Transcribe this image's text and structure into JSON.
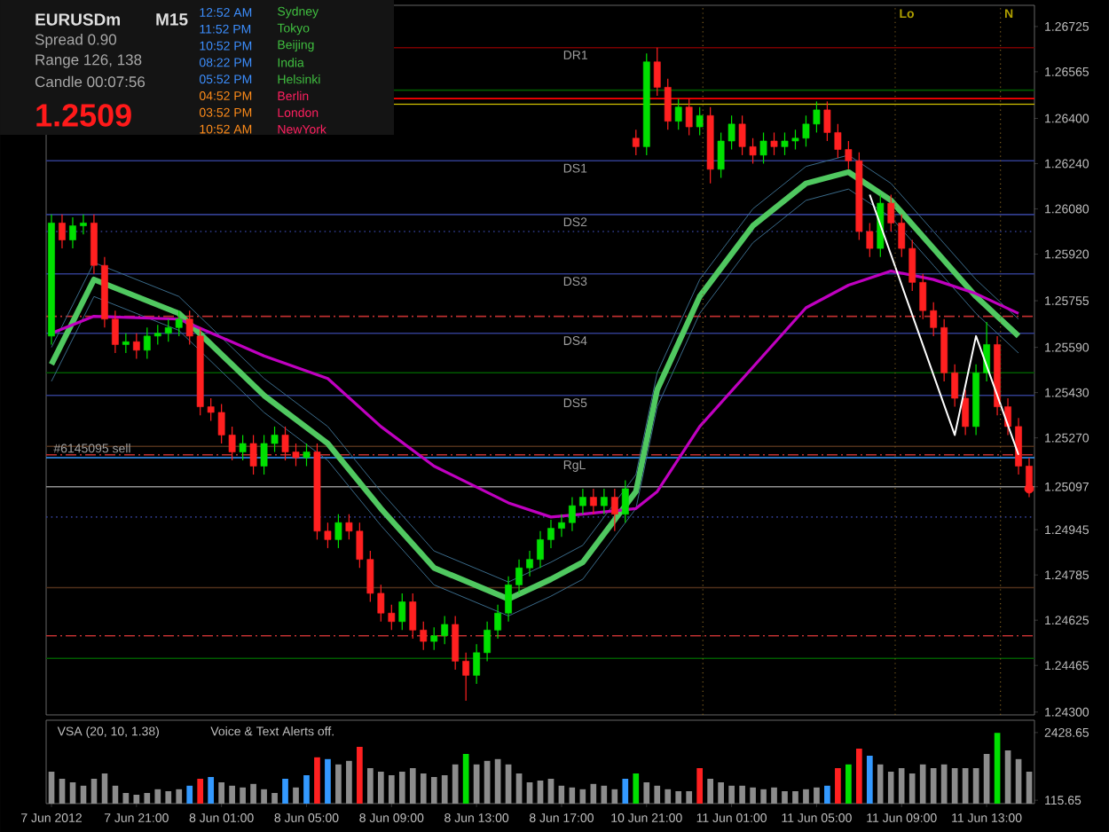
{
  "chart_data": [
    {
      "type": "candlestick",
      "title": "EURUSDm",
      "subtitle": "M15",
      "tick_labels": "y",
      "annotations": [
        "Spread  0.90",
        "Range  126, 138",
        "Candle  00:07:56",
        "1.2509",
        "12:52 AM",
        "11:52 PM",
        "10:52 PM",
        "08:22 PM",
        "05:52 PM",
        "04:52 PM",
        "03:52 PM",
        "10:52 AM",
        "Sydney",
        "Tokyo",
        "Beijing",
        "India",
        "Helsinki",
        "Berlin",
        "London",
        "NewYork",
        "Lo",
        "N"
      ],
      "categories": [
        null,
        null,
        null,
        null,
        null,
        null,
        null,
        null,
        null,
        null,
        null,
        null,
        null,
        null,
        null,
        null,
        null,
        null,
        null,
        null,
        null,
        null,
        null,
        null,
        null,
        null,
        null,
        null,
        null,
        null,
        null,
        null,
        null,
        null,
        null,
        null,
        null,
        null,
        null,
        null,
        null,
        null,
        null,
        null,
        null,
        null,
        null,
        null,
        null,
        null,
        null,
        null,
        null,
        null,
        null,
        null,
        null,
        null,
        null,
        null,
        null,
        null,
        null,
        null,
        null,
        null,
        null,
        null,
        null,
        null,
        null,
        null,
        null,
        null,
        null,
        null,
        null,
        null,
        null,
        null,
        null,
        null,
        null,
        null,
        null,
        null,
        null,
        null,
        null,
        null,
        null,
        null,
        null
      ],
      "ohlc": [
        [
          1.2563,
          1.2606,
          1.256,
          1.2603
        ],
        [
          1.2603,
          1.2606,
          1.2594,
          1.2597
        ],
        [
          1.2597,
          1.2605,
          1.2594,
          1.2602
        ],
        [
          1.2602,
          1.2606,
          1.2599,
          1.2603
        ],
        [
          1.2603,
          1.2606,
          1.2585,
          1.2588
        ],
        [
          1.2588,
          1.2591,
          1.2566,
          1.2569
        ],
        [
          1.2569,
          1.2572,
          1.2557,
          1.256
        ],
        [
          1.256,
          1.2564,
          1.2557,
          1.2561
        ],
        [
          1.2561,
          1.2564,
          1.2555,
          1.2558
        ],
        [
          1.2558,
          1.2566,
          1.2555,
          1.2563
        ],
        [
          1.2563,
          1.2567,
          1.256,
          1.2564
        ],
        [
          1.2564,
          1.2569,
          1.2561,
          1.2566
        ],
        [
          1.2566,
          1.2572,
          1.2563,
          1.2569
        ],
        [
          1.2569,
          1.2572,
          1.256,
          1.2563
        ],
        [
          1.2563,
          1.2566,
          1.2535,
          1.2538
        ],
        [
          1.2538,
          1.2541,
          1.2533,
          1.2536
        ],
        [
          1.2536,
          1.2539,
          1.2525,
          1.2528
        ],
        [
          1.2528,
          1.2531,
          1.2519,
          1.2522
        ],
        [
          1.2522,
          1.2528,
          1.2519,
          1.2525
        ],
        [
          1.2525,
          1.2528,
          1.2514,
          1.2517
        ],
        [
          1.2517,
          1.2528,
          1.2514,
          1.2525
        ],
        [
          1.2525,
          1.2531,
          1.2522,
          1.2528
        ],
        [
          1.2528,
          1.2531,
          1.2519,
          1.2522
        ],
        [
          1.2522,
          1.2525,
          1.2517,
          1.252
        ],
        [
          1.252,
          1.2525,
          1.2517,
          1.2522
        ],
        [
          1.2522,
          1.2525,
          1.2491,
          1.2494
        ],
        [
          1.2494,
          1.2497,
          1.2488,
          1.2491
        ],
        [
          1.2491,
          1.25,
          1.2488,
          1.2497
        ],
        [
          1.2497,
          1.25,
          1.2491,
          1.2494
        ],
        [
          1.2494,
          1.2497,
          1.2481,
          1.2484
        ],
        [
          1.2484,
          1.2487,
          1.2469,
          1.2472
        ],
        [
          1.2472,
          1.2475,
          1.2462,
          1.2465
        ],
        [
          1.2465,
          1.2468,
          1.2459,
          1.2462
        ],
        [
          1.2462,
          1.2472,
          1.2459,
          1.2469
        ],
        [
          1.2469,
          1.2472,
          1.2456,
          1.2459
        ],
        [
          1.2459,
          1.2462,
          1.2452,
          1.2455
        ],
        [
          1.2455,
          1.246,
          1.2452,
          1.2457
        ],
        [
          1.2457,
          1.2464,
          1.2454,
          1.2461
        ],
        [
          1.2461,
          1.2464,
          1.2445,
          1.2448
        ],
        [
          1.2448,
          1.2451,
          1.2434,
          1.2443
        ],
        [
          1.2443,
          1.2454,
          1.244,
          1.2451
        ],
        [
          1.2451,
          1.2462,
          1.2448,
          1.2459
        ],
        [
          1.2459,
          1.2468,
          1.2456,
          1.2465
        ],
        [
          1.2465,
          1.2478,
          1.2462,
          1.2475
        ],
        [
          1.2475,
          1.2484,
          1.2472,
          1.2481
        ],
        [
          1.2481,
          1.2487,
          1.2478,
          1.2484
        ],
        [
          1.2484,
          1.2494,
          1.2481,
          1.2491
        ],
        [
          1.2491,
          1.2498,
          1.2488,
          1.2495
        ],
        [
          1.2495,
          1.25,
          1.2492,
          1.2497
        ],
        [
          1.2497,
          1.2506,
          1.2494,
          1.2503
        ],
        [
          1.2503,
          1.2509,
          1.25,
          1.2506
        ],
        [
          1.2506,
          1.2509,
          1.25,
          1.2503
        ],
        [
          1.2503,
          1.2509,
          1.25,
          1.2506
        ],
        [
          1.2506,
          1.2509,
          1.2494,
          1.25
        ],
        [
          1.25,
          1.2512,
          1.2497,
          1.2509
        ],
        [
          1.2633,
          1.2636,
          1.2627,
          1.263
        ],
        [
          1.263,
          1.2663,
          1.2627,
          1.266
        ],
        [
          1.266,
          1.2665,
          1.2648,
          1.2651
        ],
        [
          1.2651,
          1.2654,
          1.2636,
          1.2639
        ],
        [
          1.2639,
          1.2647,
          1.2636,
          1.2644
        ],
        [
          1.2644,
          1.2647,
          1.2634,
          1.2637
        ],
        [
          1.2637,
          1.2644,
          1.2634,
          1.2641
        ],
        [
          1.2641,
          1.2644,
          1.2617,
          1.2622
        ],
        [
          1.2622,
          1.2635,
          1.2619,
          1.2632
        ],
        [
          1.2632,
          1.2641,
          1.2629,
          1.2638
        ],
        [
          1.2638,
          1.2641,
          1.2627,
          1.263
        ],
        [
          1.263,
          1.2633,
          1.2624,
          1.2627
        ],
        [
          1.2627,
          1.2635,
          1.2624,
          1.2632
        ],
        [
          1.2632,
          1.2635,
          1.2627,
          1.263
        ],
        [
          1.263,
          1.2635,
          1.2627,
          1.2632
        ],
        [
          1.2632,
          1.2636,
          1.2629,
          1.2633
        ],
        [
          1.2633,
          1.2641,
          1.263,
          1.2638
        ],
        [
          1.2638,
          1.2646,
          1.2635,
          1.2643
        ],
        [
          1.2643,
          1.2646,
          1.2632,
          1.2635
        ],
        [
          1.2635,
          1.2638,
          1.2626,
          1.2629
        ],
        [
          1.2629,
          1.2632,
          1.2622,
          1.2625
        ],
        [
          1.2625,
          1.2628,
          1.2597,
          1.26
        ],
        [
          1.26,
          1.2603,
          1.2591,
          1.2594
        ],
        [
          1.2594,
          1.2613,
          1.2591,
          1.261
        ],
        [
          1.261,
          1.2613,
          1.26,
          1.2603
        ],
        [
          1.2603,
          1.2606,
          1.2591,
          1.2594
        ],
        [
          1.2594,
          1.2597,
          1.2579,
          1.2582
        ],
        [
          1.2582,
          1.2585,
          1.2569,
          1.2572
        ],
        [
          1.2572,
          1.2575,
          1.2563,
          1.2566
        ],
        [
          1.2566,
          1.2569,
          1.2547,
          1.255
        ],
        [
          1.255,
          1.2553,
          1.2538,
          1.2541
        ],
        [
          1.2541,
          1.2544,
          1.2528,
          1.2531
        ],
        [
          1.2531,
          1.2553,
          1.2528,
          1.255
        ],
        [
          1.255,
          1.2568,
          1.2547,
          1.256
        ],
        [
          1.256,
          1.2563,
          1.2535,
          1.2538
        ],
        [
          1.2538,
          1.2541,
          1.2528,
          1.2531
        ],
        [
          1.2531,
          1.2534,
          1.2514,
          1.2517
        ],
        [
          1.2517,
          1.252,
          1.2506,
          1.2509
        ]
      ],
      "series": [
        {
          "type": "line",
          "color": "#50c860",
          "values": [
            1.2553,
            null,
            null,
            null,
            1.2583,
            null,
            null,
            null,
            null,
            null,
            null,
            null,
            1.2571,
            null,
            null,
            null,
            null,
            null,
            null,
            null,
            1.2542,
            null,
            null,
            null,
            null,
            null,
            1.2525,
            null,
            null,
            null,
            null,
            1.2502,
            null,
            null,
            null,
            null,
            1.2481,
            null,
            null,
            null,
            null,
            null,
            null,
            1.247,
            null,
            null,
            null,
            1.2477,
            null,
            null,
            1.2483,
            null,
            null,
            null,
            null,
            1.2508,
            null,
            1.2544,
            null,
            null,
            null,
            1.2577,
            null,
            null,
            null,
            null,
            1.2602,
            null,
            null,
            null,
            null,
            1.2617,
            null,
            null,
            null,
            1.2621,
            null,
            null,
            null,
            1.2611,
            null,
            null,
            null,
            1.2594,
            null,
            null,
            null,
            1.2577,
            null,
            null,
            null,
            1.2563,
            null
          ]
        },
        {
          "type": "line",
          "color": "#3a6a8a",
          "values": [
            1.2559,
            null,
            null,
            null,
            1.2589,
            null,
            null,
            null,
            null,
            null,
            null,
            null,
            1.2577,
            null,
            null,
            null,
            null,
            null,
            null,
            null,
            1.2548,
            null,
            null,
            null,
            null,
            null,
            1.2531,
            null,
            null,
            null,
            null,
            1.2508,
            null,
            null,
            null,
            null,
            1.2487,
            null,
            null,
            null,
            null,
            null,
            null,
            1.2476,
            null,
            null,
            null,
            1.2483,
            null,
            null,
            1.2489,
            null,
            null,
            null,
            null,
            1.2514,
            null,
            1.255,
            null,
            null,
            null,
            1.2583,
            null,
            null,
            null,
            null,
            1.2608,
            null,
            null,
            null,
            null,
            1.2623,
            null,
            null,
            null,
            1.2627,
            null,
            null,
            null,
            1.2617,
            null,
            null,
            null,
            1.26,
            null,
            null,
            null,
            1.2583,
            null,
            null,
            null,
            1.2569,
            null
          ]
        },
        {
          "type": "line",
          "color": "#3a6a8a",
          "values": [
            1.2547,
            null,
            null,
            null,
            1.2577,
            null,
            null,
            null,
            null,
            null,
            null,
            null,
            1.2565,
            null,
            null,
            null,
            null,
            null,
            null,
            null,
            1.2536,
            null,
            null,
            null,
            null,
            null,
            1.2519,
            null,
            null,
            null,
            null,
            1.2496,
            null,
            null,
            null,
            null,
            1.2475,
            null,
            null,
            null,
            null,
            null,
            null,
            1.2464,
            null,
            null,
            null,
            1.2471,
            null,
            null,
            1.2477,
            null,
            null,
            null,
            null,
            1.2502,
            null,
            1.2538,
            null,
            null,
            null,
            1.2571,
            null,
            null,
            null,
            null,
            1.2596,
            null,
            null,
            null,
            null,
            1.2611,
            null,
            null,
            null,
            1.2615,
            null,
            null,
            null,
            1.2605,
            null,
            null,
            null,
            1.2588,
            null,
            null,
            null,
            1.2571,
            null,
            null,
            null,
            1.2557,
            null
          ]
        },
        {
          "type": "line",
          "color": "#c000c0",
          "values": [
            1.2564,
            null,
            null,
            null,
            1.257,
            null,
            null,
            null,
            null,
            null,
            null,
            null,
            1.2569,
            null,
            null,
            null,
            null,
            null,
            null,
            null,
            1.2556,
            null,
            null,
            null,
            null,
            null,
            1.2548,
            null,
            null,
            null,
            null,
            1.2531,
            null,
            null,
            null,
            null,
            1.2517,
            null,
            null,
            null,
            null,
            null,
            null,
            1.2504,
            null,
            null,
            null,
            1.2499,
            null,
            null,
            1.25,
            null,
            null,
            null,
            null,
            1.2502,
            null,
            1.2508,
            null,
            null,
            null,
            1.2531,
            null,
            null,
            null,
            null,
            1.2552,
            null,
            null,
            null,
            null,
            1.2573,
            null,
            null,
            null,
            1.2581,
            null,
            null,
            null,
            1.2586,
            null,
            null,
            null,
            1.2583,
            null,
            null,
            null,
            1.2578,
            null,
            null,
            null,
            1.2571,
            null
          ]
        },
        {
          "type": "line",
          "color": "#ffffff",
          "values": [
            null,
            null,
            null,
            null,
            null,
            null,
            null,
            null,
            null,
            null,
            null,
            null,
            null,
            null,
            null,
            null,
            null,
            null,
            null,
            null,
            null,
            null,
            null,
            null,
            null,
            null,
            null,
            null,
            null,
            null,
            null,
            null,
            null,
            null,
            null,
            null,
            null,
            null,
            null,
            null,
            null,
            null,
            null,
            null,
            null,
            null,
            null,
            null,
            null,
            null,
            null,
            null,
            null,
            null,
            null,
            null,
            null,
            null,
            null,
            null,
            null,
            null,
            null,
            null,
            null,
            null,
            null,
            null,
            null,
            null,
            null,
            null,
            null,
            null,
            null,
            null,
            null,
            1.2613,
            null,
            null,
            null,
            null,
            null,
            null,
            null,
            1.2528,
            null,
            1.2563,
            null,
            null,
            null,
            1.2521,
            null
          ]
        },
        {
          "type": "scatter",
          "color": "#ff2020",
          "values": [
            null,
            null,
            null,
            null,
            null,
            null,
            null,
            null,
            null,
            null,
            null,
            null,
            null,
            null,
            null,
            null,
            null,
            null,
            null,
            null,
            null,
            null,
            null,
            null,
            null,
            null,
            null,
            null,
            null,
            null,
            null,
            null,
            null,
            null,
            null,
            null,
            null,
            null,
            null,
            null,
            null,
            null,
            null,
            null,
            null,
            null,
            null,
            null,
            null,
            null,
            null,
            null,
            null,
            null,
            null,
            null,
            null,
            null,
            null,
            null,
            null,
            null,
            null,
            null,
            null,
            null,
            null,
            null,
            null,
            null,
            null,
            null,
            null,
            null,
            null,
            null,
            null,
            null,
            null,
            null,
            null,
            null,
            null,
            null,
            null,
            null,
            null,
            null,
            null,
            null,
            null,
            null,
            1.2509
          ]
        }
      ],
      "ref_lines": [
        {
          "axis": "y",
          "value": 1.2665,
          "label": "DR1",
          "color": "#7a0000"
        },
        {
          "axis": "y",
          "value": 1.265,
          "color": "#005a00"
        },
        {
          "axis": "y",
          "value": 1.2647,
          "color": "#ff0000"
        },
        {
          "axis": "y",
          "value": 1.2645,
          "color": "#d0c000"
        },
        {
          "axis": "y",
          "value": 1.2625,
          "label": "DS1",
          "color": "#303c8c"
        },
        {
          "axis": "y",
          "value": 1.2606,
          "label": "DS2",
          "color": "#303c8c"
        },
        {
          "axis": "y",
          "value": 1.26,
          "color": "#303c8c",
          "line_style": "dotted"
        },
        {
          "axis": "y",
          "value": 1.2585,
          "label": "DS3",
          "color": "#303c8c"
        },
        {
          "axis": "y",
          "value": 1.257,
          "color": "#c03030",
          "line_style": "dashed"
        },
        {
          "axis": "y",
          "value": 1.2564,
          "label": "DS4",
          "color": "#303c8c"
        },
        {
          "axis": "y",
          "value": 1.255,
          "color": "#005a00"
        },
        {
          "axis": "y",
          "value": 1.2542,
          "label": "DS5",
          "color": "#303c8c"
        },
        {
          "axis": "y",
          "value": 1.2524,
          "color": "#50301a"
        },
        {
          "axis": "y",
          "value": 1.2521,
          "label": "#6145095 sell",
          "color": "#c03030",
          "line_style": "dashed"
        },
        {
          "axis": "y",
          "value": 1.252,
          "label": "RgL",
          "color": "#3399ff"
        },
        {
          "axis": "y",
          "value": 1.25097,
          "color": "#909090"
        },
        {
          "axis": "y",
          "value": 1.2499,
          "color": "#303c8c",
          "line_style": "dotted"
        },
        {
          "axis": "y",
          "value": 1.2474,
          "color": "#50301a"
        },
        {
          "axis": "y",
          "value": 1.2457,
          "color": "#c03030",
          "line_style": "dashed"
        },
        {
          "axis": "y",
          "value": 1.2449,
          "color": "#005a00"
        }
      ],
      "ylim": [
        1.2429,
        1.268
      ],
      "yticks": [
        {
          "value": 1.243,
          "label": "1.24300"
        },
        1.24465,
        1.24625,
        1.24785,
        1.24945,
        1.25097,
        {
          "value": 1.2527,
          "label": "1.25270"
        },
        {
          "value": 1.2543,
          "label": "1.25430"
        },
        {
          "value": 1.2559,
          "label": "1.25590"
        },
        1.25755,
        {
          "value": 1.2592,
          "label": "1.25920"
        },
        {
          "value": 1.2608,
          "label": "1.26080"
        },
        {
          "value": 1.2624,
          "label": "1.26240"
        },
        {
          "value": 1.264,
          "label": "1.26400"
        },
        1.26565,
        1.26725
      ]
    },
    {
      "type": "bar",
      "title": "VSA (20, 10, 1.38)",
      "annotations": [
        "Voice & Text Alerts off."
      ],
      "categories": [
        "7 Jun 2012",
        null,
        null,
        null,
        null,
        null,
        null,
        null,
        "7 Jun 21:00",
        null,
        null,
        null,
        null,
        null,
        null,
        null,
        "8 Jun 01:00",
        null,
        null,
        null,
        null,
        null,
        null,
        null,
        "8 Jun 05:00",
        null,
        null,
        null,
        null,
        null,
        null,
        null,
        "8 Jun 09:00",
        null,
        null,
        null,
        null,
        null,
        null,
        null,
        "8 Jun 13:00",
        null,
        null,
        null,
        null,
        null,
        null,
        null,
        "8 Jun 17:00",
        null,
        null,
        null,
        null,
        null,
        null,
        null,
        "10 Jun 21:00",
        null,
        null,
        null,
        null,
        null,
        null,
        null,
        "11 Jun 01:00",
        null,
        null,
        null,
        null,
        null,
        null,
        null,
        "11 Jun 05:00",
        null,
        null,
        null,
        null,
        null,
        null,
        null,
        "11 Jun 09:00",
        null,
        null,
        null,
        null,
        null,
        null,
        null,
        "11 Jun 13:00",
        null,
        null,
        null,
        null
      ],
      "values": [
        1090,
        850,
        730,
        610,
        850,
        1030,
        610,
        360,
        300,
        360,
        490,
        420,
        490,
        610,
        850,
        910,
        730,
        610,
        550,
        670,
        490,
        360,
        850,
        550,
        970,
        1580,
        1520,
        1340,
        1460,
        1940,
        1210,
        1090,
        970,
        1090,
        1210,
        1030,
        910,
        970,
        1340,
        1700,
        1340,
        1460,
        1520,
        1340,
        1030,
        730,
        790,
        850,
        610,
        550,
        490,
        670,
        610,
        490,
        850,
        1030,
        730,
        610,
        490,
        420,
        420,
        1210,
        850,
        730,
        610,
        610,
        550,
        490,
        550,
        420,
        420,
        490,
        550,
        610,
        1210,
        1340,
        1880,
        1640,
        1340,
        1090,
        1210,
        1030,
        1340,
        1210,
        1340,
        1210,
        1210,
        1210,
        1700,
        2420,
        1820,
        1520,
        1090
      ],
      "colors": [
        "#8c8c8c",
        "#8c8c8c",
        "#8c8c8c",
        "#8c8c8c",
        "#8c8c8c",
        "#8c8c8c",
        "#8c8c8c",
        "#8c8c8c",
        "#8c8c8c",
        "#8c8c8c",
        "#8c8c8c",
        "#8c8c8c",
        "#8c8c8c",
        "#3399ff",
        "#ff2020",
        "#3399ff",
        "#8c8c8c",
        "#8c8c8c",
        "#8c8c8c",
        "#8c8c8c",
        "#8c8c8c",
        "#8c8c8c",
        "#3399ff",
        "#8c8c8c",
        "#3399ff",
        "#ff2020",
        "#3399ff",
        "#8c8c8c",
        "#8c8c8c",
        "#ff2020",
        "#8c8c8c",
        "#8c8c8c",
        "#8c8c8c",
        "#8c8c8c",
        "#8c8c8c",
        "#8c8c8c",
        "#8c8c8c",
        "#8c8c8c",
        "#8c8c8c",
        "#00e000",
        "#8c8c8c",
        "#8c8c8c",
        "#8c8c8c",
        "#8c8c8c",
        "#8c8c8c",
        "#8c8c8c",
        "#8c8c8c",
        "#8c8c8c",
        "#8c8c8c",
        "#8c8c8c",
        "#8c8c8c",
        "#8c8c8c",
        "#8c8c8c",
        "#8c8c8c",
        "#3399ff",
        "#00e000",
        "#8c8c8c",
        "#8c8c8c",
        "#8c8c8c",
        "#8c8c8c",
        "#8c8c8c",
        "#ff2020",
        "#8c8c8c",
        "#8c8c8c",
        "#8c8c8c",
        "#8c8c8c",
        "#8c8c8c",
        "#8c8c8c",
        "#8c8c8c",
        "#8c8c8c",
        "#8c8c8c",
        "#8c8c8c",
        "#8c8c8c",
        "#3399ff",
        "#ff2020",
        "#00e000",
        "#ff2020",
        "#3399ff",
        "#8c8c8c",
        "#8c8c8c",
        "#8c8c8c",
        "#8c8c8c",
        "#8c8c8c",
        "#8c8c8c",
        "#8c8c8c",
        "#8c8c8c",
        "#8c8c8c",
        "#8c8c8c",
        "#8c8c8c",
        "#00e000",
        "#8c8c8c",
        "#8c8c8c",
        "#8c8c8c"
      ],
      "ylim": [
        0,
        2850
      ],
      "yticks": [
        115.65,
        2428.65
      ]
    }
  ]
}
